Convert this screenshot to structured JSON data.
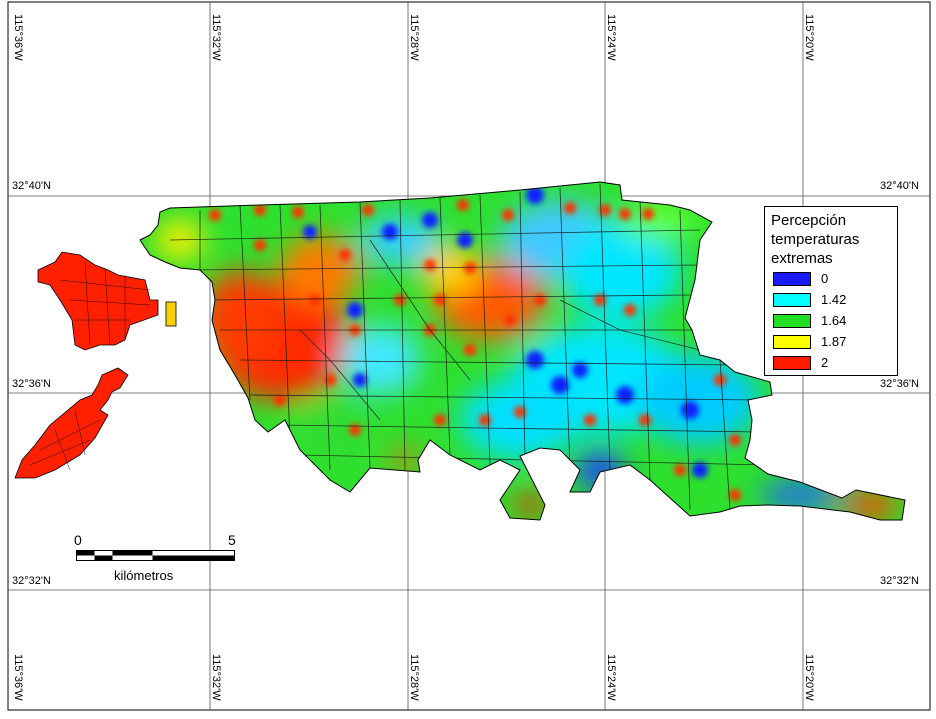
{
  "map": {
    "lon_labels": [
      "115°36'W",
      "115°32'W",
      "115°28'W",
      "115°24'W",
      "115°20'W"
    ],
    "lat_labels": [
      "32°40'N",
      "32°36'N",
      "32°32'N"
    ],
    "legend": {
      "title_lines": [
        "Percepción",
        "temperaturas",
        "extremas"
      ],
      "entries": [
        {
          "label": "0",
          "color": "#1a1aff"
        },
        {
          "label": "1.42",
          "color": "#00ffff"
        },
        {
          "label": "1.64",
          "color": "#22dd22"
        },
        {
          "label": "1.87",
          "color": "#ffff00"
        },
        {
          "label": "2",
          "color": "#ff1a00"
        }
      ]
    },
    "scale": {
      "start": "0",
      "end": "5",
      "unit": "kilómetros"
    }
  }
}
